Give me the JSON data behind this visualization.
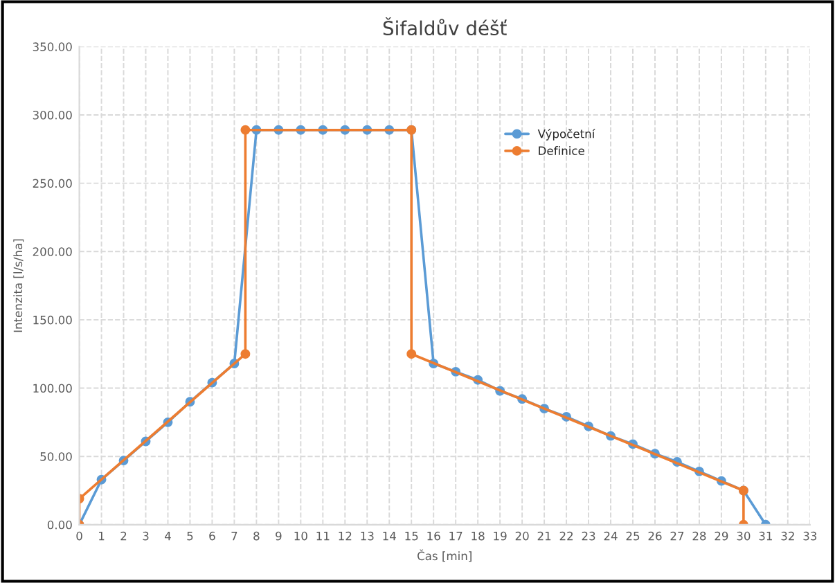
{
  "chart_data": {
    "type": "line",
    "title": "Šifaldův déšť",
    "xlabel": "Čas [min]",
    "ylabel": "Intenzita [l/s/ha]",
    "xlim": [
      0,
      33
    ],
    "xticks": [
      0,
      1,
      2,
      3,
      4,
      5,
      6,
      7,
      8,
      9,
      10,
      11,
      12,
      13,
      14,
      15,
      16,
      17,
      18,
      19,
      20,
      21,
      22,
      23,
      24,
      25,
      26,
      27,
      28,
      29,
      30,
      31,
      32,
      33
    ],
    "ylim": [
      0,
      350
    ],
    "yticks": [
      {
        "value": 0,
        "label": "0.00"
      },
      {
        "value": 50,
        "label": "50.00"
      },
      {
        "value": 100,
        "label": "100.00"
      },
      {
        "value": 150,
        "label": "150.00"
      },
      {
        "value": 200,
        "label": "200.00"
      },
      {
        "value": 250,
        "label": "250.00"
      },
      {
        "value": 300,
        "label": "300.00"
      },
      {
        "value": 350,
        "label": "350.00"
      }
    ],
    "grid": true,
    "legend": "top right",
    "marker": "circle",
    "series": [
      {
        "name": "Výpočetní",
        "color": "#5b9bd5",
        "x": [
          0,
          1,
          2,
          3,
          4,
          5,
          6,
          7,
          8,
          9,
          10,
          11,
          12,
          13,
          14,
          15,
          16,
          17,
          18,
          19,
          20,
          21,
          22,
          23,
          24,
          25,
          26,
          27,
          28,
          29,
          30,
          31
        ],
        "values": [
          0,
          33,
          47,
          61,
          75,
          90,
          104,
          118,
          289,
          289,
          289,
          289,
          289,
          289,
          289,
          289,
          118,
          112,
          106,
          98,
          92,
          85,
          79,
          72,
          65,
          59,
          52,
          46,
          39,
          32,
          25,
          0
        ]
      },
      {
        "name": "Definice",
        "color": "#ed7d31",
        "x": [
          0,
          0,
          7.5,
          7.5,
          15,
          15,
          30,
          30
        ],
        "values": [
          0,
          19,
          125,
          289,
          289,
          125,
          25,
          0
        ]
      }
    ]
  }
}
